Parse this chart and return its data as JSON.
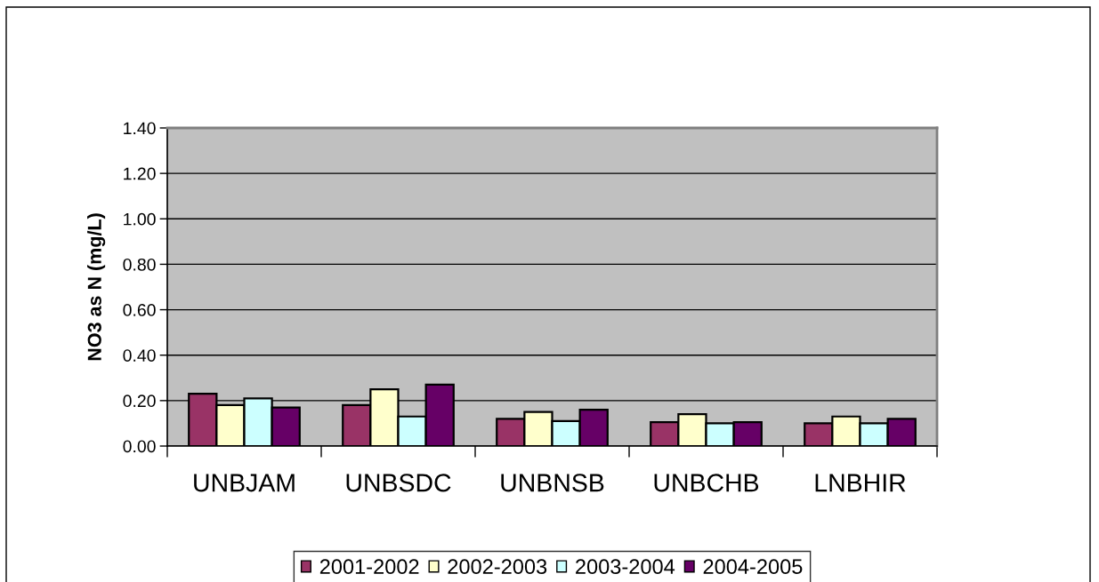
{
  "chart_data": {
    "type": "bar",
    "ylabel": "NO3 as N (mg/L)",
    "categories": [
      "UNBJAM",
      "UNBSDC",
      "UNBNSB",
      "UNBCHB",
      "LNBHIR"
    ],
    "series": [
      {
        "name": "2001-2002",
        "color": "#993366",
        "values": [
          0.23,
          0.18,
          0.12,
          0.105,
          0.1
        ]
      },
      {
        "name": "2002-2003",
        "color": "#ffffcc",
        "values": [
          0.18,
          0.25,
          0.15,
          0.14,
          0.13
        ]
      },
      {
        "name": "2003-2004",
        "color": "#ccffff",
        "values": [
          0.21,
          0.13,
          0.11,
          0.1,
          0.1
        ]
      },
      {
        "name": "2004-2005",
        "color": "#660066",
        "values": [
          0.17,
          0.27,
          0.16,
          0.105,
          0.12
        ]
      }
    ],
    "ylim": [
      0,
      1.4
    ],
    "yticks": [
      {
        "value": 0,
        "label": "0.00"
      },
      {
        "value": 0.2,
        "label": "0.20"
      },
      {
        "value": 0.4,
        "label": "0.40"
      },
      {
        "value": 0.6,
        "label": "0.60"
      },
      {
        "value": 0.8,
        "label": "0.80"
      },
      {
        "value": 1.0,
        "label": "1.00"
      },
      {
        "value": 1.2,
        "label": "1.20"
      },
      {
        "value": 1.4,
        "label": "1.40"
      }
    ],
    "grid": "y",
    "legend": "bottom"
  }
}
